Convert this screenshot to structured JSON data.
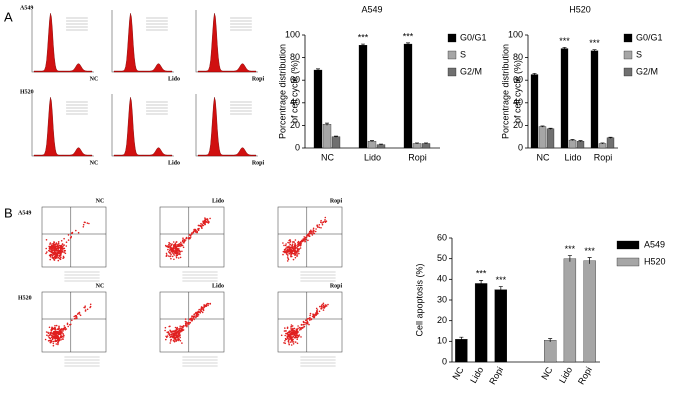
{
  "chart_data": [
    {
      "type": "bar",
      "title": "A549",
      "ylabel": [
        "Porcentrage distribution",
        "of cell cycle (%)"
      ],
      "categories": [
        "NC",
        "Lido",
        "Ropi"
      ],
      "series": [
        {
          "name": "G0/G1",
          "color": "#000000",
          "values": [
            69,
            91,
            92
          ],
          "errors": [
            1,
            1,
            1
          ],
          "significance": [
            null,
            "***",
            "***"
          ]
        },
        {
          "name": "S",
          "color": "#a6a6a6",
          "values": [
            21,
            6,
            4
          ],
          "errors": [
            1,
            0.5,
            0.5
          ]
        },
        {
          "name": "G2/M",
          "color": "#707070",
          "values": [
            10,
            3,
            4
          ],
          "errors": [
            0.5,
            0.5,
            0.5
          ]
        }
      ],
      "ylim": [
        0,
        100
      ],
      "yticks": [
        0,
        20,
        40,
        60,
        80,
        100
      ]
    },
    {
      "type": "bar",
      "title": "H520",
      "ylabel": [
        "Porcentrage distribution",
        "of cell cycle (%)"
      ],
      "categories": [
        "NC",
        "Lido",
        "Ropi"
      ],
      "series": [
        {
          "name": "G0/G1",
          "color": "#000000",
          "values": [
            65,
            88,
            86
          ],
          "errors": [
            1,
            1,
            1
          ],
          "significance": [
            null,
            "***",
            "***"
          ]
        },
        {
          "name": "S",
          "color": "#a6a6a6",
          "values": [
            19,
            7,
            4
          ],
          "errors": [
            0.5,
            0.5,
            0.5
          ]
        },
        {
          "name": "G2/M",
          "color": "#707070",
          "values": [
            17,
            6,
            9
          ],
          "errors": [
            0.5,
            0.5,
            0.5
          ]
        }
      ],
      "ylim": [
        0,
        100
      ],
      "yticks": [
        0,
        20,
        40,
        60,
        80,
        100
      ]
    },
    {
      "type": "bar",
      "ylabel": [
        "Cell apoptosis (%)"
      ],
      "categories": [
        "NC",
        "Lido",
        "Ropi",
        "NC",
        "Lido",
        "Ropi"
      ],
      "series": [
        {
          "name": "A549",
          "color": "#000000",
          "values": [
            11,
            38,
            35,
            null,
            null,
            null
          ],
          "errors": [
            1,
            1.5,
            1.5,
            null,
            null,
            null
          ],
          "significance": [
            null,
            "***",
            "***",
            null,
            null,
            null
          ]
        },
        {
          "name": "H520",
          "color": "#a6a6a6",
          "values": [
            null,
            null,
            null,
            10.5,
            50,
            49
          ],
          "errors": [
            null,
            null,
            null,
            0.8,
            1.5,
            1.5
          ],
          "significance": [
            null,
            null,
            null,
            null,
            "***",
            "***"
          ]
        }
      ],
      "ylim": [
        0,
        60
      ],
      "yticks": [
        0,
        10,
        20,
        30,
        40,
        50,
        60
      ]
    }
  ],
  "panels": {
    "A": {
      "label": "A",
      "rows": [
        "A549",
        "H520"
      ],
      "columns": [
        "NC",
        "Lido",
        "Ropi"
      ]
    },
    "B": {
      "label": "B",
      "rows": [
        "A549",
        "H520"
      ],
      "columns": [
        "NC",
        "Lido",
        "Ropi"
      ]
    }
  }
}
